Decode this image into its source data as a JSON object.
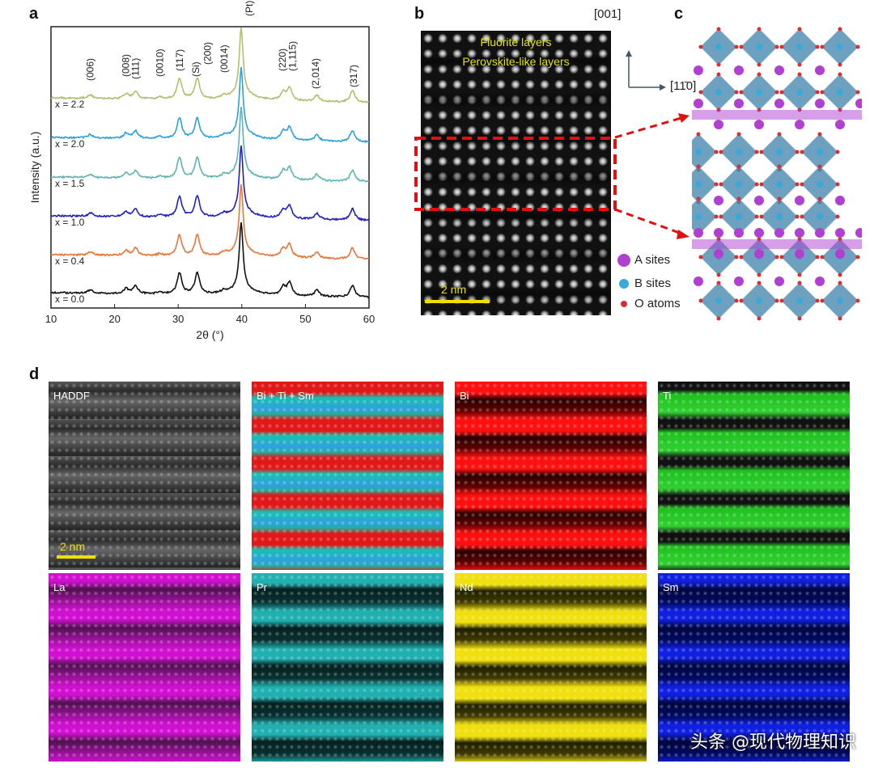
{
  "panels": {
    "a": "a",
    "b": "b",
    "c": "c",
    "d": "d"
  },
  "chart_data": {
    "type": "line",
    "xlabel": "2θ (°)",
    "ylabel": "Intensity (a.u.)",
    "xlim": [
      10,
      60
    ],
    "xticks": [
      10,
      20,
      30,
      40,
      50,
      60
    ],
    "grid": false,
    "series": [
      {
        "name": "x = 0.0",
        "color": "#111111"
      },
      {
        "name": "x = 0.4",
        "color": "#e8763a"
      },
      {
        "name": "x = 1.0",
        "color": "#2020c0"
      },
      {
        "name": "x = 1.5",
        "color": "#5fb3b3"
      },
      {
        "name": "x = 2.0",
        "color": "#2aa0dc"
      },
      {
        "name": "x = 2.2",
        "color": "#b5bd6e"
      }
    ],
    "peaks": [
      [
        16.2,
        0.08
      ],
      [
        21.8,
        0.12
      ],
      [
        23.3,
        0.18
      ],
      [
        27.1,
        0.05
      ],
      [
        30.2,
        0.5
      ],
      [
        33.0,
        0.5
      ],
      [
        37.2,
        0.06
      ],
      [
        39.9,
        1.6
      ],
      [
        46.5,
        0.2
      ],
      [
        47.5,
        0.3
      ],
      [
        51.8,
        0.15
      ],
      [
        57.4,
        0.27
      ]
    ],
    "peak_labels": [
      "(006)",
      "(008)",
      "(111)",
      "(0010)",
      "(117)",
      "(Si)",
      "(200)",
      "(0014)",
      "(Pt)",
      "(220)",
      "(1,115)",
      "(2,014)",
      "(317)"
    ]
  },
  "panel_b": {
    "text1": "Fluorite layers",
    "text2": "Perovskite-like layers",
    "scale": "2 nm"
  },
  "axes_dirs": {
    "up": "[001]",
    "right": "[11̄0]"
  },
  "legend": {
    "a": "A sites",
    "b": "B sites",
    "o": "O atoms"
  },
  "colors": {
    "a_site": "#b040d0",
    "b_site": "#3aa8d8",
    "o_atom": "#d83030",
    "octa": "#4a88b0"
  },
  "maps": [
    {
      "label": "HADDF",
      "scale": "2 nm"
    },
    {
      "label": "Bi + Ti + Sm"
    },
    {
      "label": "Bi"
    },
    {
      "label": "Ti"
    },
    {
      "label": "La"
    },
    {
      "label": "Pr"
    },
    {
      "label": "Nd"
    },
    {
      "label": "Sm"
    }
  ],
  "watermark": "头条 @现代物理知识"
}
